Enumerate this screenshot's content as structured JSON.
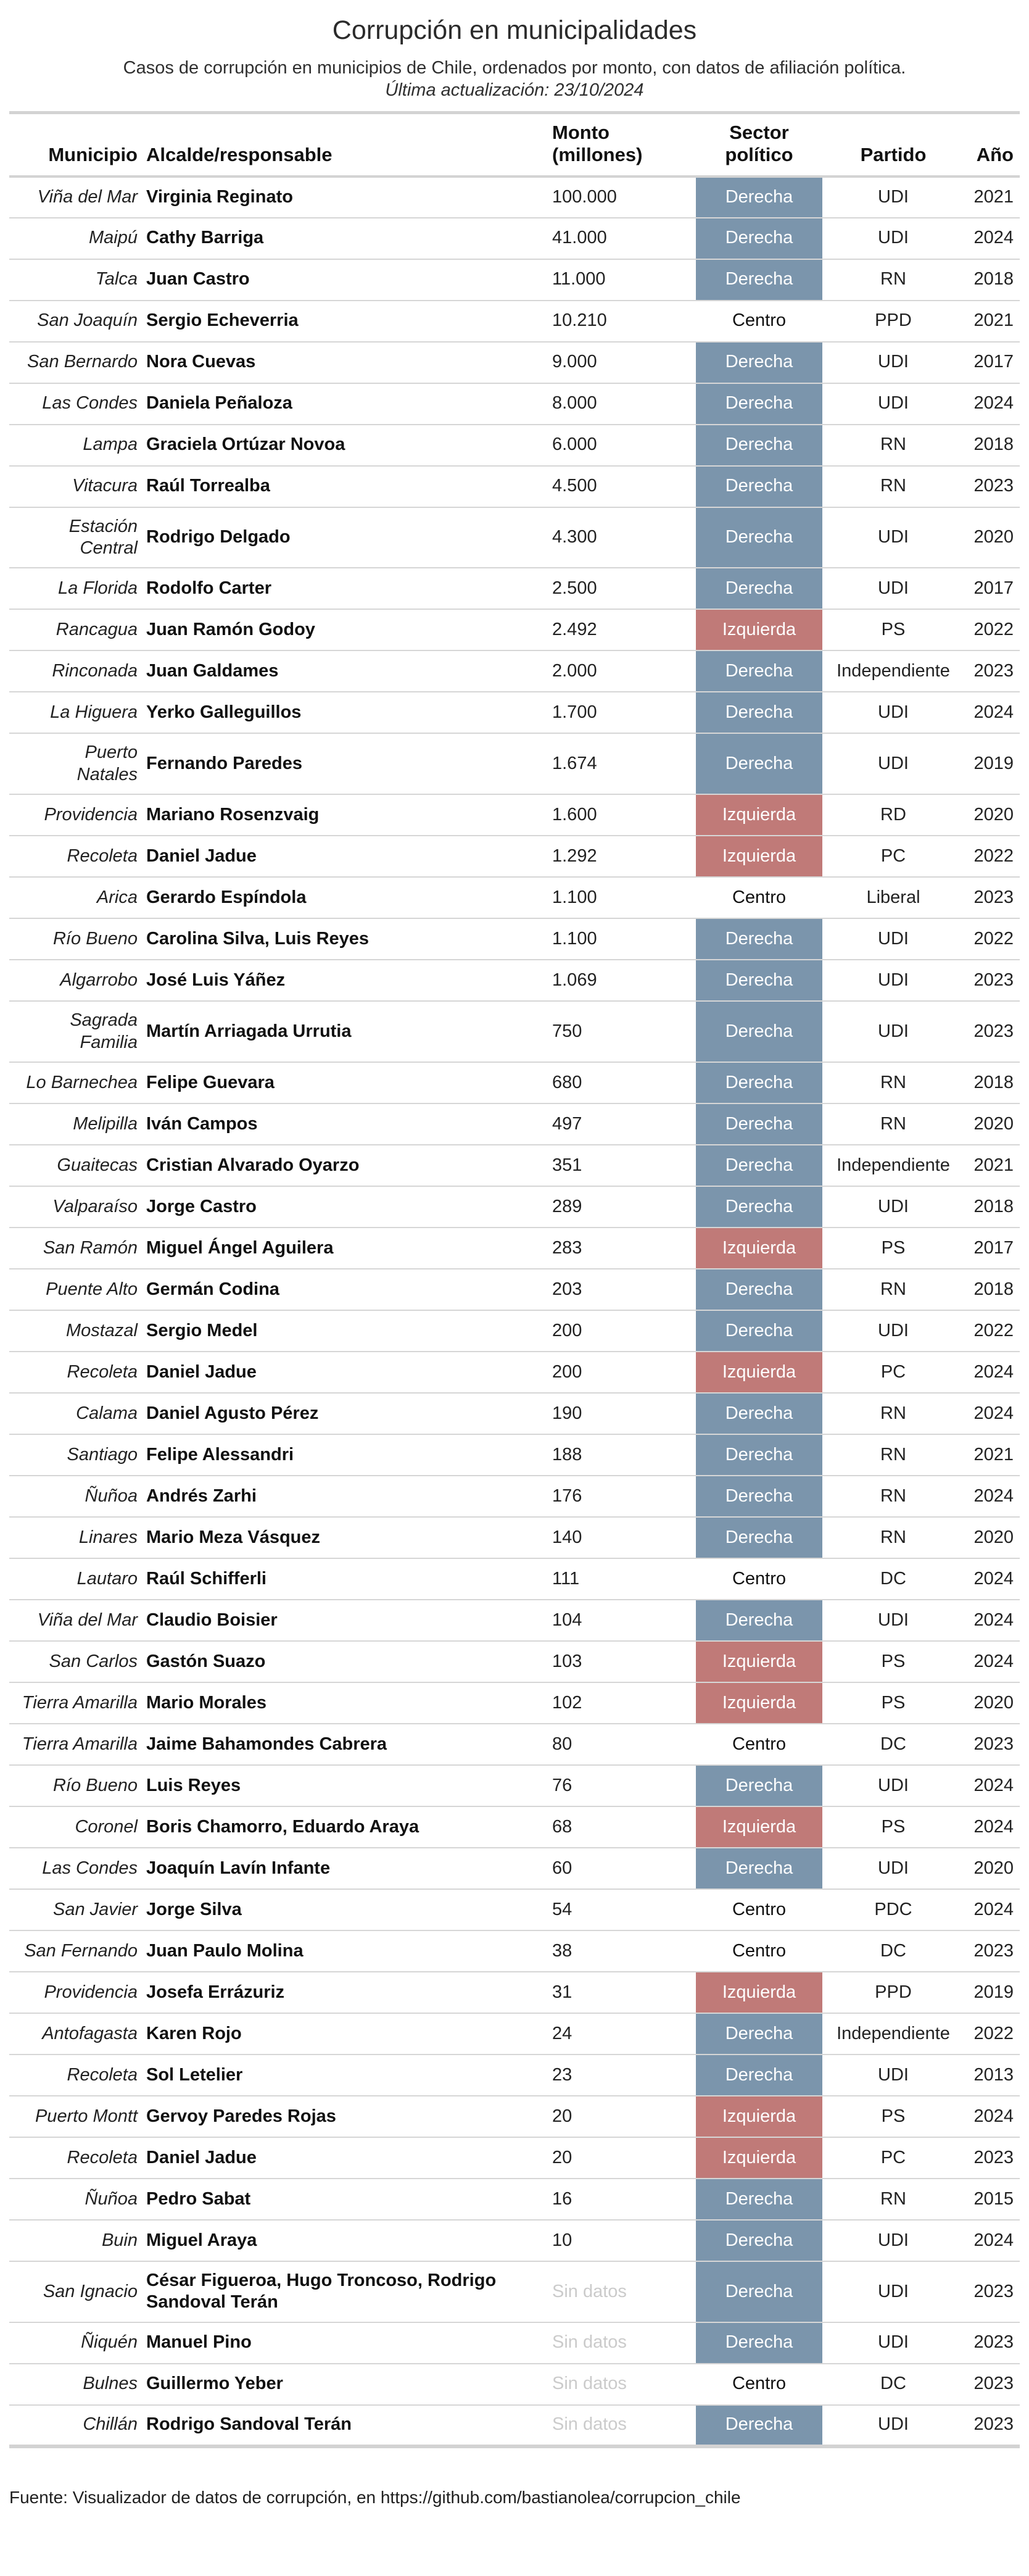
{
  "chart_data": {
    "type": "table",
    "title": "Corrupción en municipalidades",
    "subtitle": "Casos de corrupción en municipios de Chile, ordenados por monto, con datos de afiliación política.",
    "updated": "Última actualización: 23/10/2024",
    "source": "Fuente: Visualizador de datos de corrupción, en https://github.com/bastianolea/corrupcion_chile",
    "columns": [
      "Municipio",
      "Alcalde/responsable",
      "Monto\n(millones)",
      "Sector\npolítico",
      "Partido",
      "Año"
    ],
    "rows": [
      {
        "municipio": "Viña del Mar",
        "alcalde": "Virginia Reginato",
        "monto": "100.000",
        "sector": "Derecha",
        "partido": "UDI",
        "anio": "2021"
      },
      {
        "municipio": "Maipú",
        "alcalde": "Cathy Barriga",
        "monto": "41.000",
        "sector": "Derecha",
        "partido": "UDI",
        "anio": "2024"
      },
      {
        "municipio": "Talca",
        "alcalde": "Juan Castro",
        "monto": "11.000",
        "sector": "Derecha",
        "partido": "RN",
        "anio": "2018"
      },
      {
        "municipio": "San Joaquín",
        "alcalde": "Sergio Echeverria",
        "monto": "10.210",
        "sector": "Centro",
        "partido": "PPD",
        "anio": "2021"
      },
      {
        "municipio": "San Bernardo",
        "alcalde": "Nora Cuevas",
        "monto": "9.000",
        "sector": "Derecha",
        "partido": "UDI",
        "anio": "2017"
      },
      {
        "municipio": "Las Condes",
        "alcalde": "Daniela Peñaloza",
        "monto": "8.000",
        "sector": "Derecha",
        "partido": "UDI",
        "anio": "2024"
      },
      {
        "municipio": "Lampa",
        "alcalde": "Graciela Ortúzar Novoa",
        "monto": "6.000",
        "sector": "Derecha",
        "partido": "RN",
        "anio": "2018"
      },
      {
        "municipio": "Vitacura",
        "alcalde": "Raúl Torrealba",
        "monto": "4.500",
        "sector": "Derecha",
        "partido": "RN",
        "anio": "2023"
      },
      {
        "municipio": "Estación\nCentral",
        "alcalde": "Rodrigo Delgado",
        "monto": "4.300",
        "sector": "Derecha",
        "partido": "UDI",
        "anio": "2020"
      },
      {
        "municipio": "La Florida",
        "alcalde": "Rodolfo Carter",
        "monto": "2.500",
        "sector": "Derecha",
        "partido": "UDI",
        "anio": "2017"
      },
      {
        "municipio": "Rancagua",
        "alcalde": "Juan Ramón Godoy",
        "monto": "2.492",
        "sector": "Izquierda",
        "partido": "PS",
        "anio": "2022"
      },
      {
        "municipio": "Rinconada",
        "alcalde": "Juan Galdames",
        "monto": "2.000",
        "sector": "Derecha",
        "partido": "Independiente",
        "anio": "2023"
      },
      {
        "municipio": "La Higuera",
        "alcalde": "Yerko Galleguillos",
        "monto": "1.700",
        "sector": "Derecha",
        "partido": "UDI",
        "anio": "2024"
      },
      {
        "municipio": "Puerto\nNatales",
        "alcalde": "Fernando Paredes",
        "monto": "1.674",
        "sector": "Derecha",
        "partido": "UDI",
        "anio": "2019"
      },
      {
        "municipio": "Providencia",
        "alcalde": "Mariano Rosenzvaig",
        "monto": "1.600",
        "sector": "Izquierda",
        "partido": "RD",
        "anio": "2020"
      },
      {
        "municipio": "Recoleta",
        "alcalde": "Daniel Jadue",
        "monto": "1.292",
        "sector": "Izquierda",
        "partido": "PC",
        "anio": "2022"
      },
      {
        "municipio": "Arica",
        "alcalde": "Gerardo Espíndola",
        "monto": "1.100",
        "sector": "Centro",
        "partido": "Liberal",
        "anio": "2023"
      },
      {
        "municipio": "Río Bueno",
        "alcalde": "Carolina Silva, Luis Reyes",
        "monto": "1.100",
        "sector": "Derecha",
        "partido": "UDI",
        "anio": "2022"
      },
      {
        "municipio": "Algarrobo",
        "alcalde": "José Luis Yáñez",
        "monto": "1.069",
        "sector": "Derecha",
        "partido": "UDI",
        "anio": "2023"
      },
      {
        "municipio": "Sagrada\nFamilia",
        "alcalde": "Martín Arriagada Urrutia",
        "monto": "750",
        "sector": "Derecha",
        "partido": "UDI",
        "anio": "2023"
      },
      {
        "municipio": "Lo Barnechea",
        "alcalde": "Felipe Guevara",
        "monto": "680",
        "sector": "Derecha",
        "partido": "RN",
        "anio": "2018"
      },
      {
        "municipio": "Melipilla",
        "alcalde": "Iván Campos",
        "monto": "497",
        "sector": "Derecha",
        "partido": "RN",
        "anio": "2020"
      },
      {
        "municipio": "Guaitecas",
        "alcalde": "Cristian Alvarado Oyarzo",
        "monto": "351",
        "sector": "Derecha",
        "partido": "Independiente",
        "anio": "2021"
      },
      {
        "municipio": "Valparaíso",
        "alcalde": "Jorge Castro",
        "monto": "289",
        "sector": "Derecha",
        "partido": "UDI",
        "anio": "2018"
      },
      {
        "municipio": "San Ramón",
        "alcalde": "Miguel Ángel Aguilera",
        "monto": "283",
        "sector": "Izquierda",
        "partido": "PS",
        "anio": "2017"
      },
      {
        "municipio": "Puente Alto",
        "alcalde": "Germán Codina",
        "monto": "203",
        "sector": "Derecha",
        "partido": "RN",
        "anio": "2018"
      },
      {
        "municipio": "Mostazal",
        "alcalde": "Sergio Medel",
        "monto": "200",
        "sector": "Derecha",
        "partido": "UDI",
        "anio": "2022"
      },
      {
        "municipio": "Recoleta",
        "alcalde": "Daniel Jadue",
        "monto": "200",
        "sector": "Izquierda",
        "partido": "PC",
        "anio": "2024"
      },
      {
        "municipio": "Calama",
        "alcalde": "Daniel Agusto Pérez",
        "monto": "190",
        "sector": "Derecha",
        "partido": "RN",
        "anio": "2024"
      },
      {
        "municipio": "Santiago",
        "alcalde": "Felipe Alessandri",
        "monto": "188",
        "sector": "Derecha",
        "partido": "RN",
        "anio": "2021"
      },
      {
        "municipio": "Ñuñoa",
        "alcalde": "Andrés Zarhi",
        "monto": "176",
        "sector": "Derecha",
        "partido": "RN",
        "anio": "2024"
      },
      {
        "municipio": "Linares",
        "alcalde": "Mario Meza Vásquez",
        "monto": "140",
        "sector": "Derecha",
        "partido": "RN",
        "anio": "2020"
      },
      {
        "municipio": "Lautaro",
        "alcalde": "Raúl Schifferli",
        "monto": "111",
        "sector": "Centro",
        "partido": "DC",
        "anio": "2024"
      },
      {
        "municipio": "Viña del Mar",
        "alcalde": "Claudio Boisier",
        "monto": "104",
        "sector": "Derecha",
        "partido": "UDI",
        "anio": "2024"
      },
      {
        "municipio": "San Carlos",
        "alcalde": "Gastón Suazo",
        "monto": "103",
        "sector": "Izquierda",
        "partido": "PS",
        "anio": "2024"
      },
      {
        "municipio": "Tierra Amarilla",
        "alcalde": "Mario Morales",
        "monto": "102",
        "sector": "Izquierda",
        "partido": "PS",
        "anio": "2020"
      },
      {
        "municipio": "Tierra Amarilla",
        "alcalde": "Jaime Bahamondes Cabrera",
        "monto": "80",
        "sector": "Centro",
        "partido": "DC",
        "anio": "2023"
      },
      {
        "municipio": "Río Bueno",
        "alcalde": "Luis Reyes",
        "monto": "76",
        "sector": "Derecha",
        "partido": "UDI",
        "anio": "2024"
      },
      {
        "municipio": "Coronel",
        "alcalde": "Boris Chamorro, Eduardo Araya",
        "monto": "68",
        "sector": "Izquierda",
        "partido": "PS",
        "anio": "2024"
      },
      {
        "municipio": "Las Condes",
        "alcalde": "Joaquín Lavín Infante",
        "monto": "60",
        "sector": "Derecha",
        "partido": "UDI",
        "anio": "2020"
      },
      {
        "municipio": "San Javier",
        "alcalde": "Jorge Silva",
        "monto": "54",
        "sector": "Centro",
        "partido": "PDC",
        "anio": "2024"
      },
      {
        "municipio": "San Fernando",
        "alcalde": "Juan Paulo Molina",
        "monto": "38",
        "sector": "Centro",
        "partido": "DC",
        "anio": "2023"
      },
      {
        "municipio": "Providencia",
        "alcalde": "Josefa Errázuriz",
        "monto": "31",
        "sector": "Izquierda",
        "partido": "PPD",
        "anio": "2019"
      },
      {
        "municipio": "Antofagasta",
        "alcalde": "Karen Rojo",
        "monto": "24",
        "sector": "Derecha",
        "partido": "Independiente",
        "anio": "2022"
      },
      {
        "municipio": "Recoleta",
        "alcalde": "Sol Letelier",
        "monto": "23",
        "sector": "Derecha",
        "partido": "UDI",
        "anio": "2013"
      },
      {
        "municipio": "Puerto Montt",
        "alcalde": "Gervoy Paredes Rojas",
        "monto": "20",
        "sector": "Izquierda",
        "partido": "PS",
        "anio": "2024"
      },
      {
        "municipio": "Recoleta",
        "alcalde": "Daniel Jadue",
        "monto": "20",
        "sector": "Izquierda",
        "partido": "PC",
        "anio": "2023"
      },
      {
        "municipio": "Ñuñoa",
        "alcalde": "Pedro Sabat",
        "monto": "16",
        "sector": "Derecha",
        "partido": "RN",
        "anio": "2015"
      },
      {
        "municipio": "Buin",
        "alcalde": "Miguel Araya",
        "monto": "10",
        "sector": "Derecha",
        "partido": "UDI",
        "anio": "2024"
      },
      {
        "municipio": "San Ignacio",
        "alcalde": "César Figueroa, Hugo Troncoso, Rodrigo Sandoval Terán",
        "monto": "Sin datos",
        "sector": "Derecha",
        "partido": "UDI",
        "anio": "2023"
      },
      {
        "municipio": "Ñiquén",
        "alcalde": "Manuel Pino",
        "monto": "Sin datos",
        "sector": "Derecha",
        "partido": "UDI",
        "anio": "2023"
      },
      {
        "municipio": "Bulnes",
        "alcalde": "Guillermo Yeber",
        "monto": "Sin datos",
        "sector": "Centro",
        "partido": "DC",
        "anio": "2023"
      },
      {
        "municipio": "Chillán",
        "alcalde": "Rodrigo Sandoval Terán",
        "monto": "Sin datos",
        "sector": "Derecha",
        "partido": "UDI",
        "anio": "2023"
      }
    ]
  },
  "colors": {
    "derecha": "#7b95ac",
    "izquierda": "#c07a78",
    "sin_datos": "#cbcbcb",
    "border": "#d3d3d3"
  }
}
